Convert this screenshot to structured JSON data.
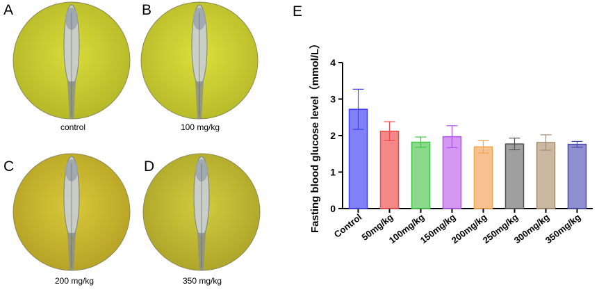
{
  "panels": [
    {
      "letter": "A",
      "caption": "control",
      "tint": "#d9dc3a",
      "tint_dark": "#b6b928"
    },
    {
      "letter": "B",
      "caption": "100 mg/kg",
      "tint": "#dcdf3c",
      "tint_dark": "#b9bc2a"
    },
    {
      "letter": "C",
      "caption": "200 mg/kg",
      "tint": "#d9c93a",
      "tint_dark": "#b7a326"
    },
    {
      "letter": "D",
      "caption": "350 mg/kg",
      "tint": "#d2cc3e",
      "tint_dark": "#aea62a"
    }
  ],
  "chart_panel_letter": "E",
  "chart_data": {
    "type": "bar",
    "title": "",
    "xlabel": "",
    "ylabel": "Fasting blood glucose level（mmol/L）",
    "ylim": [
      0,
      4
    ],
    "yticks": [
      "0",
      "1",
      "2",
      "3",
      "4"
    ],
    "grid": false,
    "categories": [
      "Control",
      "50mg/kg",
      "100mg/kg",
      "150mg/kg",
      "200mg/kg",
      "250mg/kg",
      "300mg/kg",
      "350mg/kg"
    ],
    "values": [
      2.72,
      2.12,
      1.82,
      1.97,
      1.69,
      1.77,
      1.81,
      1.76
    ],
    "errors": [
      0.55,
      0.26,
      0.14,
      0.3,
      0.17,
      0.16,
      0.21,
      0.08
    ],
    "fill_colors": [
      "#8080f7",
      "#f48888",
      "#8bd98b",
      "#d498f3",
      "#f7c290",
      "#9f9f9f",
      "#c9b8a2",
      "#8e8ed0"
    ],
    "edge_colors": [
      "#3c3cf0",
      "#f04848",
      "#42c742",
      "#b152ec",
      "#f5a24c",
      "#555555",
      "#a78c6c",
      "#4848ad"
    ]
  }
}
